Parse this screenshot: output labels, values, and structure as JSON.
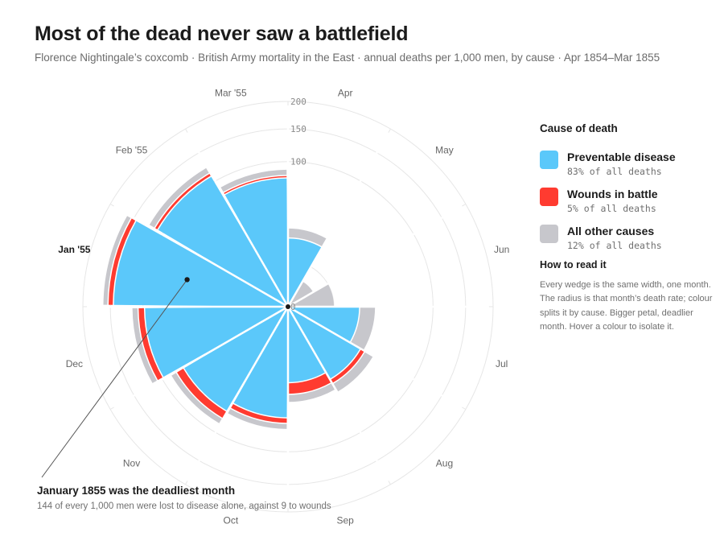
{
  "header": {
    "title": "Most of the dead never saw a battlefield",
    "subtitle": "Florence Nightingale’s coxcomb · British Army mortality in the East · annual deaths per 1,000 men, by cause · Apr 1854–Mar 1855"
  },
  "legend": {
    "title": "Cause of death",
    "items": [
      {
        "key": "disease",
        "label": "Preventable disease",
        "share": "83% of all deaths",
        "color": "#5bc8fa"
      },
      {
        "key": "wounds",
        "label": "Wounds in battle",
        "share": "5% of all deaths",
        "color": "#ff3b30"
      },
      {
        "key": "other",
        "label": "All other causes",
        "share": "12% of all deaths",
        "color": "#c7c7cc"
      }
    ]
  },
  "howto": {
    "title": "How to read it",
    "body": "Every wedge is the same width, one month. The radius is that month’s death rate; colour splits it by cause. Bigger petal, deadlier month. Hover a colour to isolate it."
  },
  "annotation": {
    "title": "January 1855 was the deadliest month",
    "body": "144 of every 1,000 men were lost to disease alone, against 9 to wounds",
    "month": "Jan '55"
  },
  "chart_data": {
    "type": "coxcomb",
    "radial_ticks": [
      "0",
      "100",
      "150",
      "200"
    ],
    "radial_tick_values": [
      0,
      100,
      150,
      200
    ],
    "rmax": 200,
    "months": [
      "Apr",
      "May",
      "Jun",
      "Jul",
      "Aug",
      "Sep",
      "Oct",
      "Nov",
      "Dec",
      "Jan '55",
      "Feb '55",
      "Mar '55"
    ],
    "highlight_month": "Jan '55",
    "series": [
      {
        "key": "disease",
        "name": "Preventable disease",
        "color": "#5bc8fa",
        "values": [
          22,
          0,
          0,
          24,
          33,
          27,
          58,
          69,
          97,
          144,
          108,
          78
        ]
      },
      {
        "key": "wounds",
        "name": "Wounds in battle",
        "color": "#ff3b30",
        "values": [
          0,
          0,
          0,
          0,
          4,
          9,
          6,
          10,
          9,
          9,
          5,
          3
        ]
      },
      {
        "key": "other",
        "name": "All other causes",
        "color": "#c7c7cc",
        "values": [
          7,
          4,
          10,
          12,
          9,
          7,
          7,
          8,
          9,
          9,
          10,
          8
        ]
      }
    ]
  }
}
